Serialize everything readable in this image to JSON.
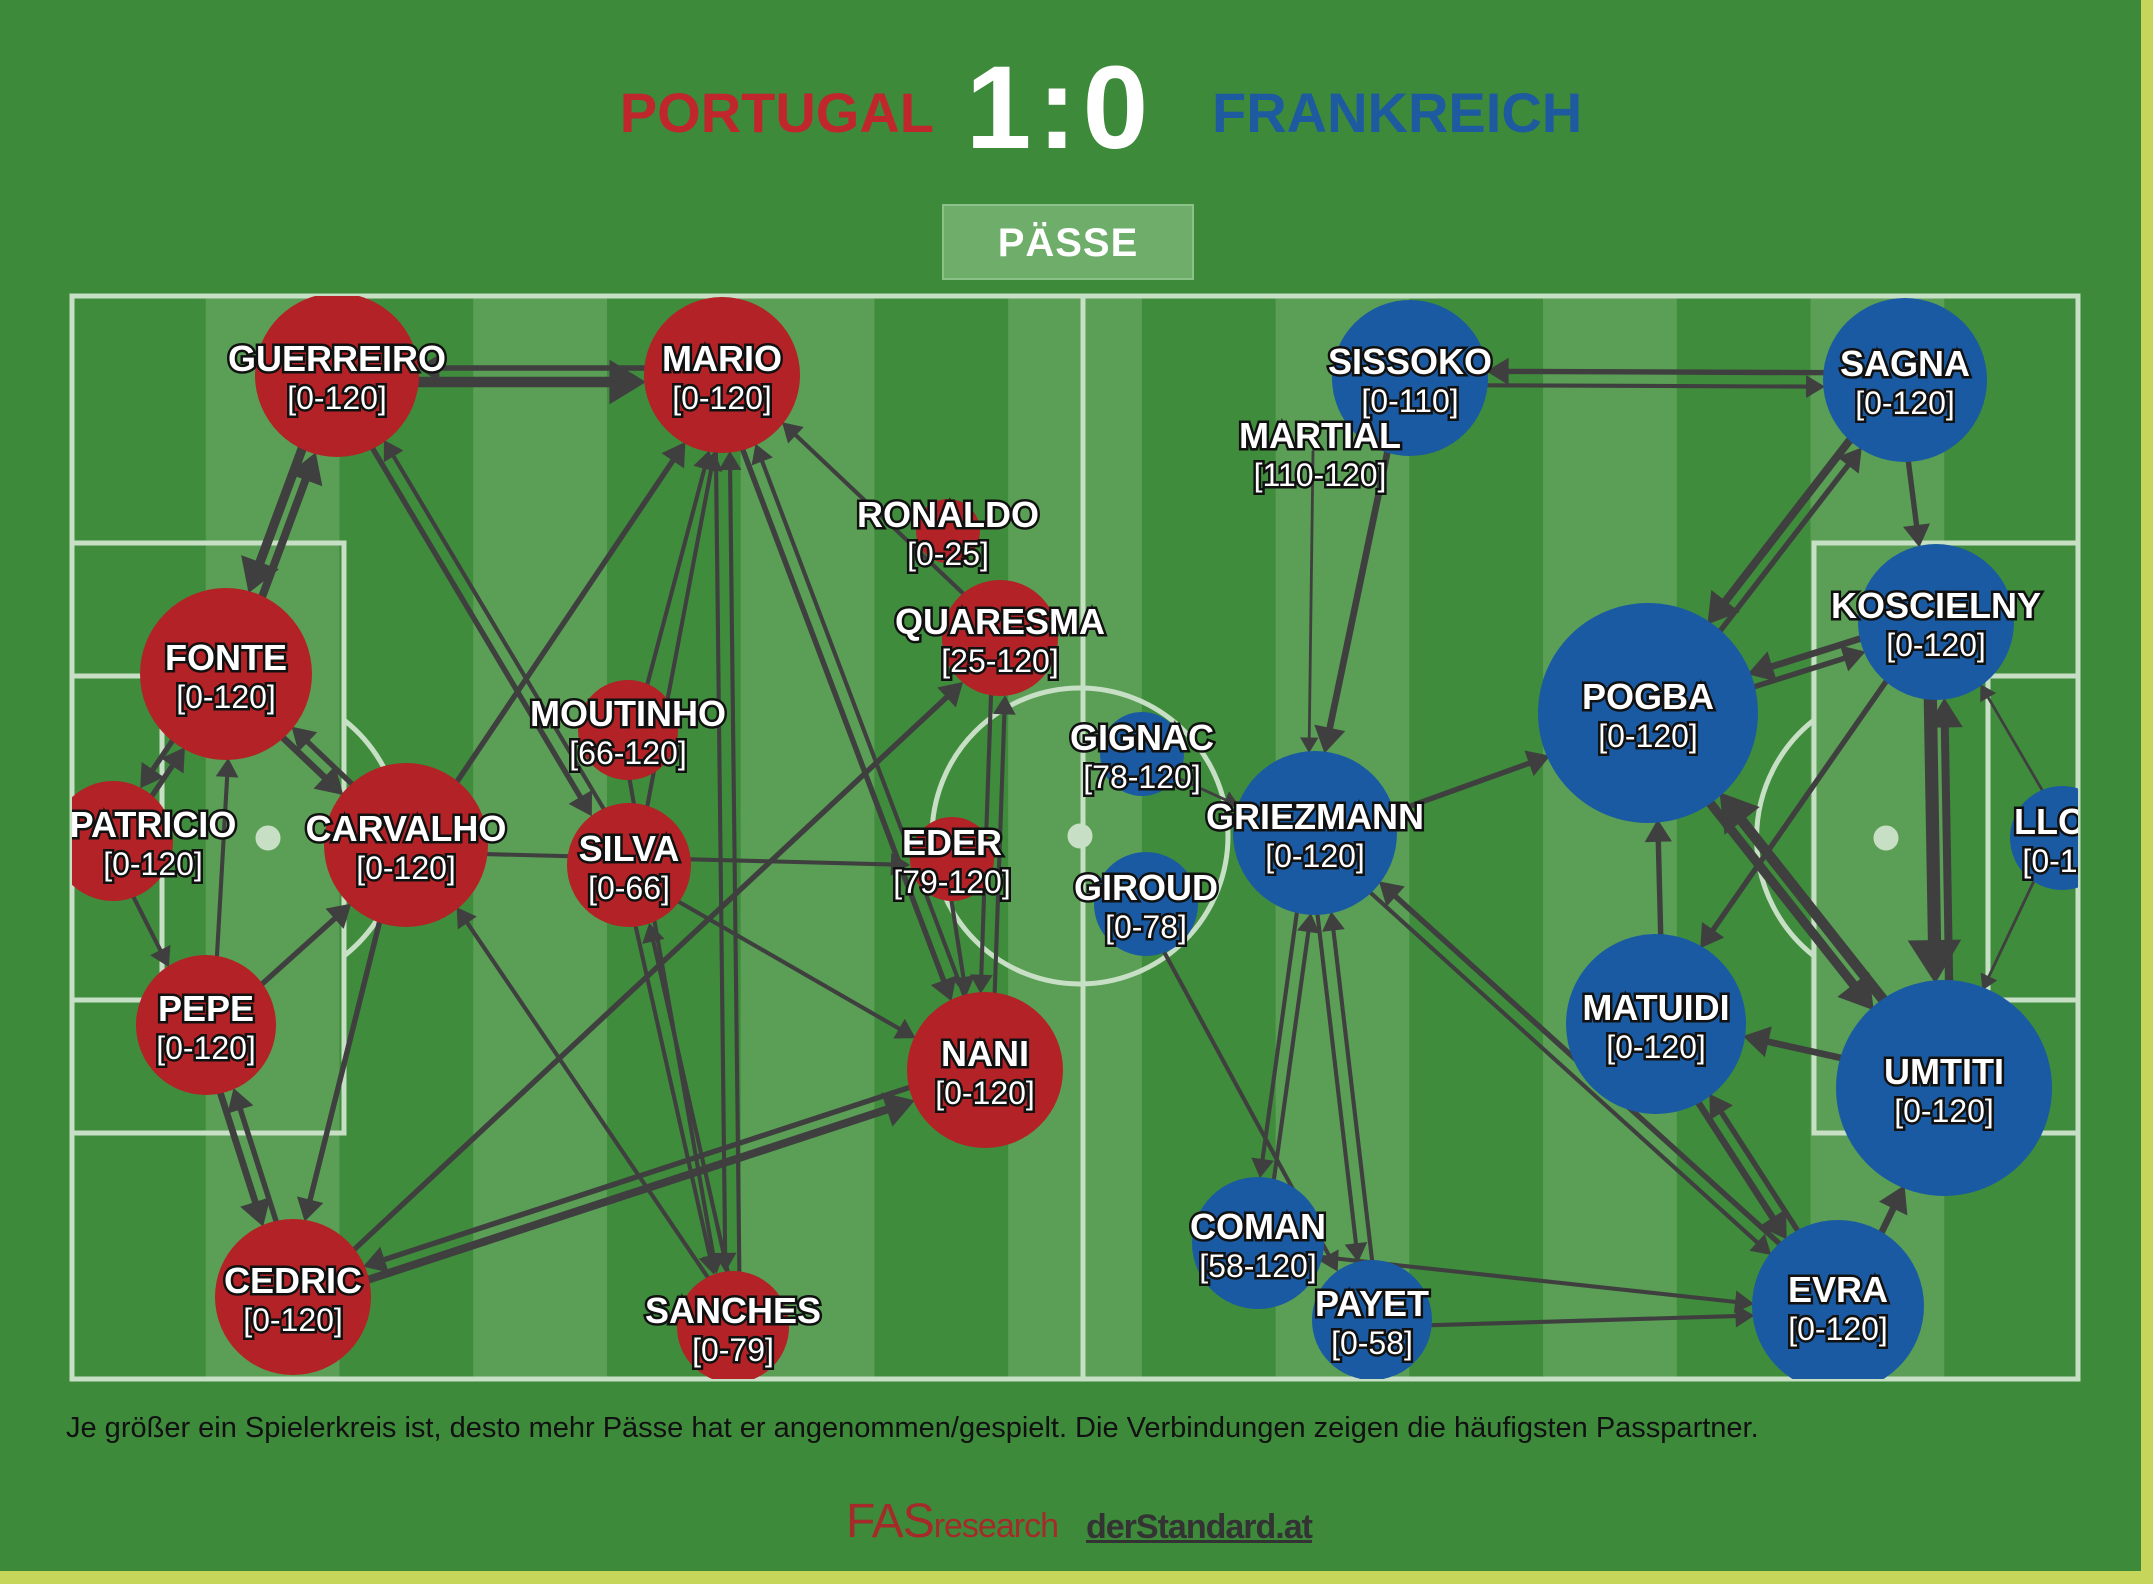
{
  "header": {
    "home_team": "PORTUGAL",
    "score": "1:0",
    "away_team": "FRANKREICH",
    "tab_label": "PÄSSE"
  },
  "colors": {
    "home": "#b22226",
    "away": "#1a5aa3",
    "pitch_dark": "#3f8c3c",
    "pitch_light": "#5a9f55",
    "lines": "#c7dfc4",
    "edges": "#3f3f3f"
  },
  "players": [
    {
      "id": "guerreiro",
      "team": "home",
      "name": "GUERREIRO",
      "minutes": "[0-120]"
    },
    {
      "id": "mario",
      "team": "home",
      "name": "MARIO",
      "minutes": "[0-120]"
    },
    {
      "id": "ronaldo",
      "team": "home",
      "name": "RONALDO",
      "minutes": "[0-25]"
    },
    {
      "id": "quaresma",
      "team": "home",
      "name": "QUARESMA",
      "minutes": "[25-120]"
    },
    {
      "id": "fonte",
      "team": "home",
      "name": "FONTE",
      "minutes": "[0-120]"
    },
    {
      "id": "moutinho",
      "team": "home",
      "name": "MOUTINHO",
      "minutes": "[66-120]"
    },
    {
      "id": "patricio",
      "team": "home",
      "name": "PATRICIO",
      "minutes": "[0-120]"
    },
    {
      "id": "carvalho",
      "team": "home",
      "name": "CARVALHO",
      "minutes": "[0-120]"
    },
    {
      "id": "silva",
      "team": "home",
      "name": "SILVA",
      "minutes": "[0-66]"
    },
    {
      "id": "eder",
      "team": "home",
      "name": "EDER",
      "minutes": "[79-120]"
    },
    {
      "id": "pepe",
      "team": "home",
      "name": "PEPE",
      "minutes": "[0-120]"
    },
    {
      "id": "nani",
      "team": "home",
      "name": "NANI",
      "minutes": "[0-120]"
    },
    {
      "id": "cedric",
      "team": "home",
      "name": "CEDRIC",
      "minutes": "[0-120]"
    },
    {
      "id": "sanches",
      "team": "home",
      "name": "SANCHES",
      "minutes": "[0-79]"
    },
    {
      "id": "sissoko",
      "team": "away",
      "name": "SISSOKO",
      "minutes": "[0-110]"
    },
    {
      "id": "martial",
      "team": "away",
      "name": "MARTIAL",
      "minutes": "[110-120]"
    },
    {
      "id": "sagna",
      "team": "away",
      "name": "SAGNA",
      "minutes": "[0-120]"
    },
    {
      "id": "koscielny",
      "team": "away",
      "name": "KOSCIELNY",
      "minutes": "[0-120]"
    },
    {
      "id": "pogba",
      "team": "away",
      "name": "POGBA",
      "minutes": "[0-120]"
    },
    {
      "id": "gignac",
      "team": "away",
      "name": "GIGNAC",
      "minutes": "[78-120]"
    },
    {
      "id": "griezmann",
      "team": "away",
      "name": "GRIEZMANN",
      "minutes": "[0-120]"
    },
    {
      "id": "giroud",
      "team": "away",
      "name": "GIROUD",
      "minutes": "[0-78]"
    },
    {
      "id": "lloris",
      "team": "away",
      "name": "LLO",
      "minutes": "[0-1"
    },
    {
      "id": "matuidi",
      "team": "away",
      "name": "MATUIDI",
      "minutes": "[0-120]"
    },
    {
      "id": "umtiti",
      "team": "away",
      "name": "UMTITI",
      "minutes": "[0-120]"
    },
    {
      "id": "coman",
      "team": "away",
      "name": "COMAN",
      "minutes": "[58-120]"
    },
    {
      "id": "payet",
      "team": "away",
      "name": "PAYET",
      "minutes": "[0-58]"
    },
    {
      "id": "evra",
      "team": "away",
      "name": "EVRA",
      "minutes": "[0-120]"
    }
  ],
  "edges": [
    {
      "from": "guerreiro",
      "to": "mario",
      "weight": 7
    },
    {
      "from": "mario",
      "to": "guerreiro",
      "weight": 3
    },
    {
      "from": "guerreiro",
      "to": "fonte",
      "weight": 6
    },
    {
      "from": "fonte",
      "to": "guerreiro",
      "weight": 5
    },
    {
      "from": "guerreiro",
      "to": "silva",
      "weight": 3
    },
    {
      "from": "silva",
      "to": "guerreiro",
      "weight": 2
    },
    {
      "from": "fonte",
      "to": "carvalho",
      "weight": 4
    },
    {
      "from": "carvalho",
      "to": "fonte",
      "weight": 3
    },
    {
      "from": "fonte",
      "to": "patricio",
      "weight": 3
    },
    {
      "from": "patricio",
      "to": "fonte",
      "weight": 3
    },
    {
      "from": "patricio",
      "to": "pepe",
      "weight": 2
    },
    {
      "from": "pepe",
      "to": "fonte",
      "weight": 2
    },
    {
      "from": "pepe",
      "to": "carvalho",
      "weight": 3
    },
    {
      "from": "pepe",
      "to": "cedric",
      "weight": 4
    },
    {
      "from": "cedric",
      "to": "pepe",
      "weight": 3
    },
    {
      "from": "carvalho",
      "to": "cedric",
      "weight": 3
    },
    {
      "from": "cedric",
      "to": "nani",
      "weight": 5
    },
    {
      "from": "nani",
      "to": "cedric",
      "weight": 3
    },
    {
      "from": "cedric",
      "to": "quaresma",
      "weight": 3
    },
    {
      "from": "carvalho",
      "to": "mario",
      "weight": 3
    },
    {
      "from": "carvalho",
      "to": "eder",
      "weight": 2
    },
    {
      "from": "mario",
      "to": "nani",
      "weight": 3
    },
    {
      "from": "nani",
      "to": "mario",
      "weight": 2
    },
    {
      "from": "mario",
      "to": "sanches",
      "weight": 2
    },
    {
      "from": "sanches",
      "to": "mario",
      "weight": 2
    },
    {
      "from": "silva",
      "to": "mario",
      "weight": 2
    },
    {
      "from": "moutinho",
      "to": "mario",
      "weight": 2
    },
    {
      "from": "quaresma",
      "to": "mario",
      "weight": 2
    },
    {
      "from": "quaresma",
      "to": "nani",
      "weight": 2
    },
    {
      "from": "nani",
      "to": "quaresma",
      "weight": 2
    },
    {
      "from": "silva",
      "to": "nani",
      "weight": 2
    },
    {
      "from": "sanches",
      "to": "carvalho",
      "weight": 2
    },
    {
      "from": "sanches",
      "to": "silva",
      "weight": 2
    },
    {
      "from": "silva",
      "to": "sanches",
      "weight": 2
    },
    {
      "from": "moutinho",
      "to": "sanches",
      "weight": 2
    },
    {
      "from": "eder",
      "to": "nani",
      "weight": 2
    },
    {
      "from": "sagna",
      "to": "sissoko",
      "weight": 3
    },
    {
      "from": "sissoko",
      "to": "sagna",
      "weight": 2
    },
    {
      "from": "sissoko",
      "to": "griezmann",
      "weight": 4
    },
    {
      "from": "sagna",
      "to": "koscielny",
      "weight": 3
    },
    {
      "from": "sagna",
      "to": "pogba",
      "weight": 5
    },
    {
      "from": "pogba",
      "to": "sagna",
      "weight": 3
    },
    {
      "from": "koscielny",
      "to": "pogba",
      "weight": 4
    },
    {
      "from": "pogba",
      "to": "koscielny",
      "weight": 3
    },
    {
      "from": "koscielny",
      "to": "umtiti",
      "weight": 9
    },
    {
      "from": "umtiti",
      "to": "koscielny",
      "weight": 5
    },
    {
      "from": "pogba",
      "to": "umtiti",
      "weight": 6
    },
    {
      "from": "umtiti",
      "to": "pogba",
      "weight": 7
    },
    {
      "from": "griezmann",
      "to": "pogba",
      "weight": 3
    },
    {
      "from": "matuidi",
      "to": "pogba",
      "weight": 3
    },
    {
      "from": "umtiti",
      "to": "matuidi",
      "weight": 4
    },
    {
      "from": "koscielny",
      "to": "matuidi",
      "weight": 3
    },
    {
      "from": "matuidi",
      "to": "evra",
      "weight": 4
    },
    {
      "from": "evra",
      "to": "matuidi",
      "weight": 3
    },
    {
      "from": "evra",
      "to": "umtiti",
      "weight": 4
    },
    {
      "from": "evra",
      "to": "griezmann",
      "weight": 3
    },
    {
      "from": "griezmann",
      "to": "evra",
      "weight": 2
    },
    {
      "from": "coman",
      "to": "evra",
      "weight": 2
    },
    {
      "from": "payet",
      "to": "evra",
      "weight": 2
    },
    {
      "from": "griezmann",
      "to": "coman",
      "weight": 2
    },
    {
      "from": "coman",
      "to": "griezmann",
      "weight": 2
    },
    {
      "from": "griezmann",
      "to": "payet",
      "weight": 2
    },
    {
      "from": "payet",
      "to": "griezmann",
      "weight": 2
    },
    {
      "from": "giroud",
      "to": "payet",
      "weight": 2
    },
    {
      "from": "lloris",
      "to": "koscielny",
      "weight": 1
    },
    {
      "from": "lloris",
      "to": "umtiti",
      "weight": 1
    },
    {
      "from": "martial",
      "to": "griezmann",
      "weight": 1
    },
    {
      "from": "gignac",
      "to": "griezmann",
      "weight": 1
    }
  ],
  "caption": "Je größer ein Spielerkreis ist, desto mehr Pässe hat er angenommen/gespielt. Die Verbindungen zeigen die häufigsten Passpartner.",
  "credits": {
    "fas": "FAS",
    "fas_small": "research",
    "standard": "derStandard.at"
  }
}
